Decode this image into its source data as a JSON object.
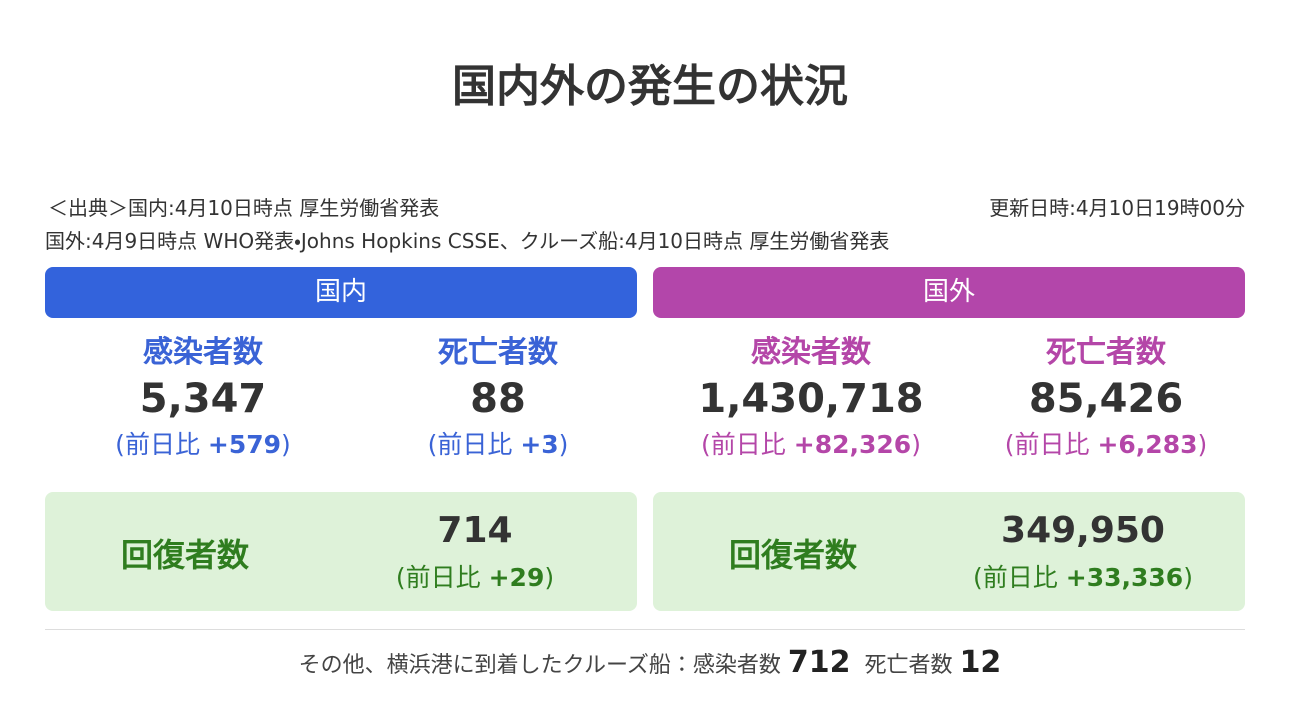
{
  "title": "国内外の発生の状況",
  "source": {
    "line1": "＜出典＞国内:4月10日時点 厚生労働省発表",
    "updated": "更新日時:4月10日19時00分",
    "line2": "国外:4月9日時点 WHO発表・Johns Hopkins CSSE、クルーズ船:4月10日時点 厚生労働省発表"
  },
  "compare": {
    "open": "(",
    "label": "前日比",
    "close": ")"
  },
  "panels": [
    {
      "header": "国内",
      "stats": [
        {
          "label": "感染者数",
          "value": "5,347",
          "diff": "+579"
        },
        {
          "label": "死亡者数",
          "value": "88",
          "diff": "+3"
        }
      ],
      "recovered": {
        "label": "回復者数",
        "value": "714",
        "diff": "+29"
      }
    },
    {
      "header": "国外",
      "stats": [
        {
          "label": "感染者数",
          "value": "1,430,718",
          "diff": "+82,326"
        },
        {
          "label": "死亡者数",
          "value": "85,426",
          "diff": "+6,283"
        }
      ],
      "recovered": {
        "label": "回復者数",
        "value": "349,950",
        "diff": "+33,336"
      }
    }
  ],
  "footer": {
    "text": "その他、横浜港に到着したクルーズ船：感染者数",
    "infected": "712",
    "deaths_label": "死亡者数",
    "deaths": "12"
  }
}
